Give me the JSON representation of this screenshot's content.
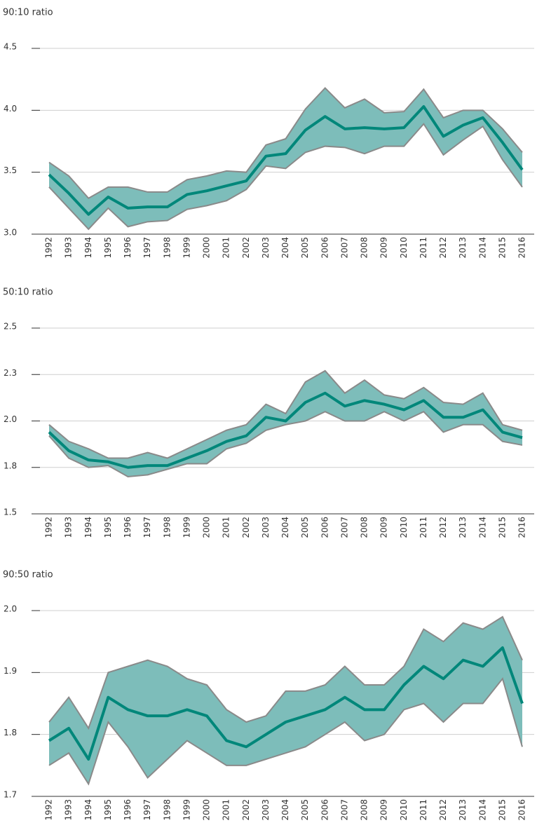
{
  "chart_data": [
    {
      "type": "line",
      "title": "90:10 ratio",
      "categories": [
        "1992",
        "1993",
        "1994",
        "1995",
        "1996",
        "1997",
        "1998",
        "1999",
        "2000",
        "2001",
        "2002",
        "2003",
        "2004",
        "2005",
        "2006",
        "2007",
        "2008",
        "2009",
        "2010",
        "2011",
        "2012",
        "2013",
        "2014",
        "2015",
        "2016"
      ],
      "series": [
        {
          "color": "#00877a",
          "values": [
            3.48,
            3.33,
            3.16,
            3.3,
            3.21,
            3.22,
            3.22,
            3.32,
            3.35,
            3.39,
            3.43,
            3.63,
            3.65,
            3.84,
            3.95,
            3.85,
            3.86,
            3.85,
            3.86,
            4.03,
            3.79,
            3.88,
            3.94,
            3.74,
            3.52
          ]
        }
      ],
      "band": {
        "color": "#7dbdba",
        "edge_color": "#8a8a8a",
        "upper": [
          3.58,
          3.47,
          3.29,
          3.38,
          3.38,
          3.34,
          3.34,
          3.44,
          3.47,
          3.51,
          3.5,
          3.72,
          3.77,
          4.01,
          4.18,
          4.02,
          4.09,
          3.98,
          3.99,
          4.17,
          3.94,
          4.0,
          4.0,
          3.85,
          3.66
        ],
        "lower": [
          3.38,
          3.21,
          3.04,
          3.21,
          3.06,
          3.1,
          3.11,
          3.2,
          3.23,
          3.27,
          3.36,
          3.55,
          3.53,
          3.66,
          3.71,
          3.7,
          3.65,
          3.71,
          3.71,
          3.89,
          3.64,
          3.76,
          3.87,
          3.6,
          3.38
        ]
      },
      "ylim": [
        3,
        4.5
      ],
      "yticks": [
        {
          "value": 3,
          "label": "3.0"
        },
        3.5,
        {
          "value": 4,
          "label": "4.0"
        },
        4.5
      ],
      "grid": true
    },
    {
      "type": "line",
      "title": "50:10 ratio",
      "categories": [
        "1992",
        "1993",
        "1994",
        "1995",
        "1996",
        "1997",
        "1998",
        "1999",
        "2000",
        "2001",
        "2002",
        "2003",
        "2004",
        "2005",
        "2006",
        "2007",
        "2008",
        "2009",
        "2010",
        "2011",
        "2012",
        "2013",
        "2014",
        "2015",
        "2016"
      ],
      "series": [
        {
          "color": "#00877a",
          "values": [
            1.94,
            1.84,
            1.79,
            1.78,
            1.75,
            1.76,
            1.76,
            1.8,
            1.84,
            1.89,
            1.92,
            2.02,
            2.0,
            2.1,
            2.15,
            2.08,
            2.11,
            2.09,
            2.06,
            2.11,
            2.02,
            2.02,
            2.06,
            1.94,
            1.91
          ]
        }
      ],
      "band": {
        "color": "#7dbdba",
        "edge_color": "#8a8a8a",
        "upper": [
          1.98,
          1.89,
          1.85,
          1.8,
          1.8,
          1.83,
          1.8,
          1.85,
          1.9,
          1.95,
          1.98,
          2.09,
          2.04,
          2.21,
          2.27,
          2.15,
          2.22,
          2.14,
          2.12,
          2.18,
          2.1,
          2.09,
          2.15,
          1.98,
          1.95
        ],
        "lower": [
          1.92,
          1.8,
          1.75,
          1.76,
          1.7,
          1.71,
          1.74,
          1.77,
          1.77,
          1.85,
          1.88,
          1.95,
          1.98,
          2.0,
          2.05,
          2.0,
          2.0,
          2.05,
          2.0,
          2.05,
          1.94,
          1.98,
          1.98,
          1.89,
          1.87
        ]
      },
      "ylim": [
        1.5,
        2.5
      ],
      "yticks": [
        1.5,
        {
          "value": 1.75,
          "label": "1.8"
        },
        {
          "value": 2,
          "label": "2.0"
        },
        {
          "value": 2.25,
          "label": "2.3"
        },
        2.5
      ],
      "grid": true
    },
    {
      "type": "line",
      "title": "90:50 ratio",
      "categories": [
        "1992",
        "1993",
        "1994",
        "1995",
        "1996",
        "1997",
        "1998",
        "1999",
        "2000",
        "2001",
        "2002",
        "2003",
        "2004",
        "2005",
        "2006",
        "2007",
        "2008",
        "2009",
        "2010",
        "2011",
        "2012",
        "2013",
        "2014",
        "2015",
        "2016"
      ],
      "series": [
        {
          "color": "#00877a",
          "values": [
            1.79,
            1.81,
            1.76,
            1.86,
            1.84,
            1.83,
            1.83,
            1.84,
            1.83,
            1.79,
            1.78,
            1.8,
            1.82,
            1.83,
            1.84,
            1.86,
            1.84,
            1.84,
            1.88,
            1.91,
            1.89,
            1.92,
            1.91,
            1.94,
            1.85
          ]
        }
      ],
      "band": {
        "color": "#7dbdba",
        "edge_color": "#8a8a8a",
        "upper": [
          1.82,
          1.86,
          1.81,
          1.9,
          1.91,
          1.92,
          1.91,
          1.89,
          1.88,
          1.84,
          1.82,
          1.83,
          1.87,
          1.87,
          1.88,
          1.91,
          1.88,
          1.88,
          1.91,
          1.97,
          1.95,
          1.98,
          1.97,
          1.99,
          1.92
        ],
        "lower": [
          1.75,
          1.77,
          1.72,
          1.82,
          1.78,
          1.73,
          1.76,
          1.79,
          1.77,
          1.75,
          1.75,
          1.76,
          1.77,
          1.78,
          1.8,
          1.82,
          1.79,
          1.8,
          1.84,
          1.85,
          1.82,
          1.85,
          1.85,
          1.89,
          1.78
        ]
      },
      "ylim": [
        1.7,
        2.0
      ],
      "yticks": [
        1.7,
        1.8,
        1.9,
        {
          "value": 2,
          "label": "2.0"
        }
      ],
      "grid": true
    }
  ]
}
